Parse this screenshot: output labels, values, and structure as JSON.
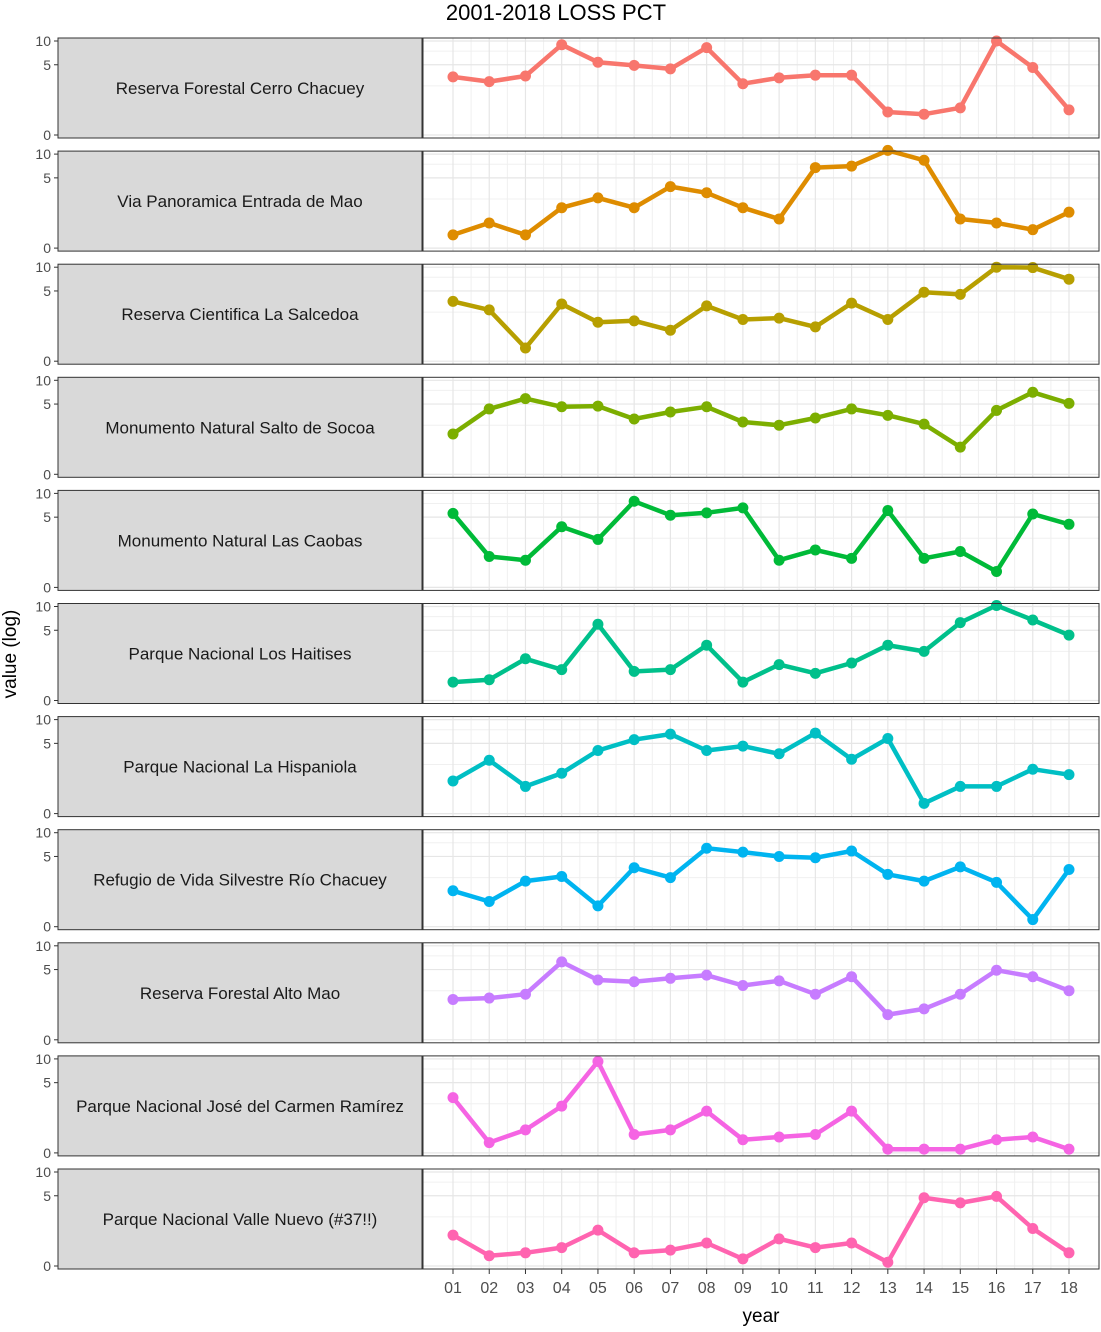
{
  "chart_data": {
    "type": "line",
    "title": "2001-2018 LOSS PCT",
    "xlabel": "year",
    "ylabel": "value (log)",
    "x": [
      "01",
      "02",
      "03",
      "04",
      "05",
      "06",
      "07",
      "08",
      "09",
      "10",
      "11",
      "12",
      "13",
      "14",
      "15",
      "16",
      "17",
      "18"
    ],
    "y_ticks": [
      0,
      5,
      10
    ],
    "ylim": [
      0,
      10
    ],
    "grid": true,
    "panels": [
      {
        "label": "Reserva Forestal Cerro Chacuey",
        "color": "#F8766D",
        "values": [
          3.4,
          2.9,
          3.5,
          9.0,
          5.4,
          4.9,
          4.4,
          8.3,
          2.7,
          3.3,
          3.6,
          3.6,
          0.8,
          0.7,
          1.0,
          10.0,
          4.6,
          0.9
        ]
      },
      {
        "label": "Via Panoramica Entrada de Mao",
        "color": "#DE8C00",
        "values": [
          0.4,
          0.9,
          0.4,
          1.8,
          2.6,
          1.8,
          3.8,
          3.1,
          1.8,
          1.1,
          6.8,
          7.1,
          11.1,
          8.4,
          1.1,
          0.9,
          0.6,
          1.5
        ]
      },
      {
        "label": "Reserva Cientifica La Salcedoa",
        "color": "#B79F00",
        "values": [
          3.6,
          2.7,
          0.4,
          3.3,
          1.7,
          1.8,
          1.2,
          3.1,
          1.9,
          2.0,
          1.4,
          3.4,
          1.9,
          4.8,
          4.5,
          10.0,
          9.9,
          7.1
        ]
      },
      {
        "label": "Monumento Natural Salto de Socoa",
        "color": "#7CAE00",
        "values": [
          1.8,
          4.3,
          5.9,
          4.6,
          4.7,
          3.1,
          3.9,
          4.6,
          2.8,
          2.5,
          3.2,
          4.3,
          3.5,
          2.6,
          1.0,
          4.1,
          7.1,
          5.1
        ]
      },
      {
        "label": "Monumento Natural Las Caobas",
        "color": "#00BA38",
        "values": [
          5.6,
          1.2,
          1.0,
          3.7,
          2.4,
          8.0,
          5.3,
          5.7,
          6.6,
          1.0,
          1.6,
          1.1,
          6.1,
          1.1,
          1.5,
          0.5,
          5.5,
          4.0
        ]
      },
      {
        "label": "Parque Nacional Los Haitises",
        "color": "#00C08B",
        "values": [
          0.6,
          0.7,
          1.9,
          1.2,
          6.0,
          1.1,
          1.2,
          3.1,
          0.6,
          1.5,
          1.0,
          1.6,
          3.1,
          2.5,
          6.3,
          10.3,
          6.8,
          4.3
        ]
      },
      {
        "label": "Parque Nacional La Hispaniola",
        "color": "#00BFC4",
        "values": [
          1.3,
          2.9,
          1.0,
          1.8,
          4.0,
          5.6,
          6.6,
          4.0,
          4.6,
          3.6,
          6.8,
          3.0,
          5.8,
          0.3,
          1.0,
          1.0,
          2.1,
          1.7
        ]
      },
      {
        "label": "Refugio de Vida Silvestre Río Chacuey",
        "color": "#00B4F0",
        "values": [
          1.5,
          0.9,
          2.2,
          2.6,
          0.7,
          3.5,
          2.5,
          6.4,
          5.7,
          5.0,
          4.8,
          5.9,
          2.8,
          2.2,
          3.6,
          2.1,
          0.2,
          3.3
        ]
      },
      {
        "label": "Reserva Forestal Alto Mao",
        "color": "#C77CFF",
        "values": [
          1.8,
          1.9,
          2.2,
          6.3,
          3.6,
          3.4,
          3.8,
          4.2,
          3.0,
          3.5,
          2.2,
          4.0,
          0.9,
          1.2,
          2.2,
          4.9,
          4.0,
          2.5
        ]
      },
      {
        "label": "Parque Nacional José del Carmen Ramírez",
        "color": "#F564E3",
        "values": [
          3.1,
          0.3,
          0.8,
          2.3,
          9.3,
          0.6,
          0.8,
          1.9,
          0.4,
          0.5,
          0.6,
          1.9,
          0.1,
          0.1,
          0.1,
          0.4,
          0.5,
          0.1
        ]
      },
      {
        "label": "Parque Nacional Valle Nuevo (#37!!)",
        "color": "#FF64B0",
        "values": [
          1.2,
          0.3,
          0.4,
          0.6,
          1.5,
          0.4,
          0.5,
          0.8,
          0.2,
          1.0,
          0.6,
          0.8,
          0.1,
          4.7,
          4.0,
          4.9,
          1.6,
          0.4
        ]
      }
    ]
  }
}
